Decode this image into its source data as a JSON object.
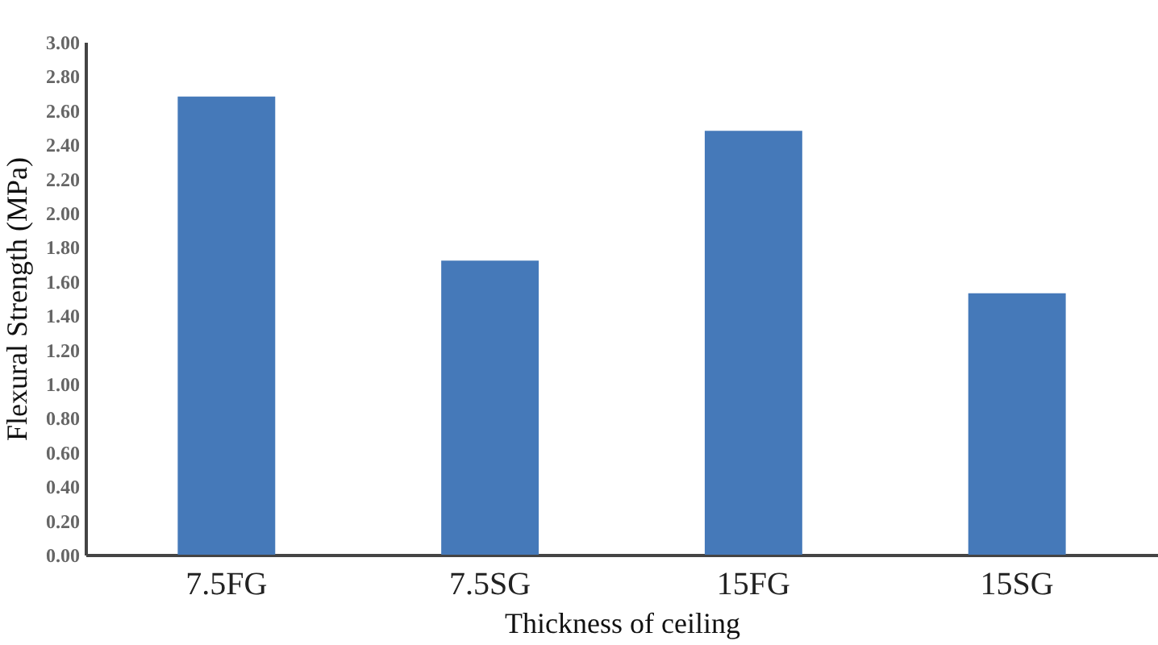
{
  "chart_data": {
    "type": "bar",
    "xlabel": "Thickness of ceiling",
    "ylabel": "Flexural  Strength (MPa)",
    "categories": [
      "7.5FG",
      "7.5SG",
      "15FG",
      "15SG"
    ],
    "values": [
      2.68,
      1.72,
      2.48,
      1.53
    ],
    "color": "#4579b9",
    "ylim": [
      0,
      3
    ],
    "yticks": [
      {
        "value": 0,
        "label": "0.00"
      },
      {
        "value": 0.2,
        "label": "0.20"
      },
      {
        "value": 0.4,
        "label": "0.40"
      },
      {
        "value": 0.6,
        "label": "0.60"
      },
      {
        "value": 0.8,
        "label": "0.80"
      },
      {
        "value": 1,
        "label": "1.00"
      },
      {
        "value": 1.2,
        "label": "1.20"
      },
      {
        "value": 1.4,
        "label": "1.40"
      },
      {
        "value": 1.6,
        "label": "1.60"
      },
      {
        "value": 1.8,
        "label": "1.80"
      },
      {
        "value": 2,
        "label": "2.00"
      },
      {
        "value": 2.2,
        "label": "2.20"
      },
      {
        "value": 2.4,
        "label": "2.40"
      },
      {
        "value": 2.6,
        "label": "2.60"
      },
      {
        "value": 2.8,
        "label": "2.80"
      },
      {
        "value": 3,
        "label": "3.00"
      }
    ],
    "grid": false
  }
}
